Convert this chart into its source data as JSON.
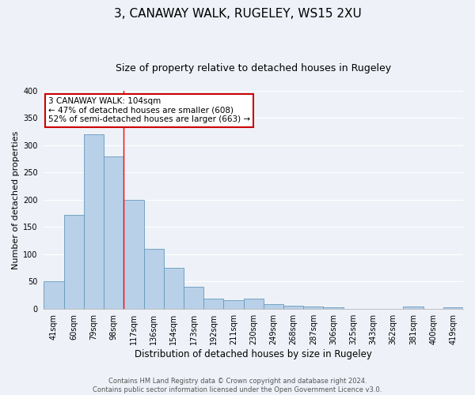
{
  "title": "3, CANAWAY WALK, RUGELEY, WS15 2XU",
  "subtitle": "Size of property relative to detached houses in Rugeley",
  "xlabel": "Distribution of detached houses by size in Rugeley",
  "ylabel": "Number of detached properties",
  "categories": [
    "41sqm",
    "60sqm",
    "79sqm",
    "98sqm",
    "117sqm",
    "136sqm",
    "154sqm",
    "173sqm",
    "192sqm",
    "211sqm",
    "230sqm",
    "249sqm",
    "268sqm",
    "287sqm",
    "306sqm",
    "325sqm",
    "343sqm",
    "362sqm",
    "381sqm",
    "400sqm",
    "419sqm"
  ],
  "values": [
    50,
    173,
    320,
    280,
    200,
    110,
    75,
    40,
    18,
    16,
    18,
    8,
    6,
    4,
    3,
    0,
    0,
    0,
    4,
    0,
    3
  ],
  "bar_color": "#b8d0e8",
  "bar_edge_color": "#6699bb",
  "ylim": [
    0,
    400
  ],
  "yticks": [
    0,
    50,
    100,
    150,
    200,
    250,
    300,
    350,
    400
  ],
  "red_line_index": 3.5,
  "annotation_title": "3 CANAWAY WALK: 104sqm",
  "annotation_line1": "← 47% of detached houses are smaller (608)",
  "annotation_line2": "52% of semi-detached houses are larger (663) →",
  "annotation_box_color": "#ffffff",
  "annotation_box_edge": "#cc0000",
  "footer_line1": "Contains HM Land Registry data © Crown copyright and database right 2024.",
  "footer_line2": "Contains public sector information licensed under the Open Government Licence v3.0.",
  "background_color": "#eef2f8",
  "grid_color": "#ffffff",
  "title_fontsize": 11,
  "subtitle_fontsize": 9,
  "ylabel_fontsize": 8,
  "xlabel_fontsize": 8.5,
  "tick_fontsize": 7,
  "annotation_fontsize": 7.5,
  "footer_fontsize": 6
}
